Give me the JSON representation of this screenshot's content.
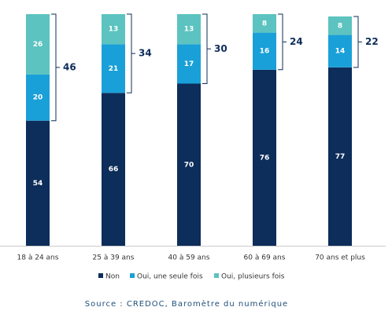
{
  "chart_data": {
    "type": "stacked_bar",
    "categories": [
      "18 à 24 ans",
      "25 à 39 ans",
      "40 à 59 ans",
      "60 à 69 ans",
      "70 ans et plus"
    ],
    "series": [
      {
        "name": "Non",
        "color": "#0d2d5a",
        "values": [
          54,
          66,
          70,
          76,
          77
        ]
      },
      {
        "name": "Oui, une seule fois",
        "color": "#1aa0d8",
        "values": [
          20,
          21,
          17,
          16,
          14
        ]
      },
      {
        "name": "Oui, plusieurs fois",
        "color": "#5cc3c0",
        "values": [
          26,
          13,
          13,
          8,
          8
        ]
      }
    ],
    "bracket_totals": [
      46,
      34,
      30,
      24,
      22
    ],
    "ylim": [
      0,
      100
    ],
    "source": "Source : CREDOC, Baromètre du numérique"
  }
}
